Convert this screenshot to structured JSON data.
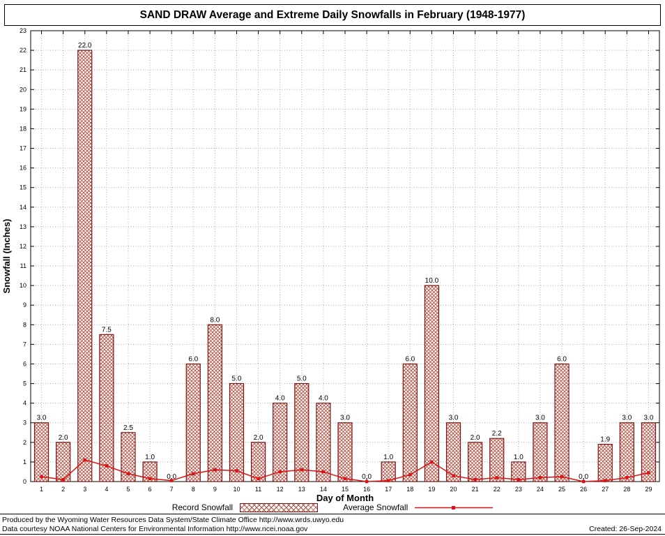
{
  "title": "SAND DRAW Average and Extreme Daily Snowfalls in February (1948-1977)",
  "legend": {
    "record_label": "Record Snowfall",
    "average_label": "Average Snowfall"
  },
  "footer": {
    "line1": "Produced by the Wyoming Water Resources Data System/State Climate Office http://www.wrds.uwyo.edu",
    "line2": "Data courtesy NOAA National Centers for Environmental Information http://www.ncei.noaa.gov",
    "created": "Created: 26-Sep-2024"
  },
  "chart_data": {
    "type": "bar",
    "title": "SAND DRAW Average and Extreme Daily Snowfalls in February (1948-1977)",
    "xlabel": "Day of Month",
    "ylabel": "Snowfall (Inches)",
    "ylim": [
      0,
      23
    ],
    "ytick_step": 1,
    "grid": true,
    "legend_position": "bottom",
    "categories": [
      1,
      2,
      3,
      4,
      5,
      6,
      7,
      8,
      9,
      10,
      11,
      12,
      13,
      14,
      15,
      16,
      17,
      18,
      19,
      20,
      21,
      22,
      23,
      24,
      25,
      26,
      27,
      28,
      29
    ],
    "series": [
      {
        "name": "Record Snowfall",
        "type": "bar",
        "values": [
          3.0,
          2.0,
          22.0,
          7.5,
          2.5,
          1.0,
          0.0,
          6.0,
          8.0,
          5.0,
          2.0,
          4.0,
          5.0,
          4.0,
          3.0,
          0.0,
          1.0,
          6.0,
          10.0,
          3.0,
          2.0,
          2.2,
          1.0,
          3.0,
          6.0,
          0.0,
          1.9,
          3.0,
          3.0
        ]
      },
      {
        "name": "Average Snowfall",
        "type": "line",
        "values": [
          0.25,
          0.1,
          1.1,
          0.8,
          0.4,
          0.15,
          0.05,
          0.4,
          0.6,
          0.55,
          0.15,
          0.5,
          0.6,
          0.5,
          0.15,
          0.0,
          0.05,
          0.35,
          1.0,
          0.3,
          0.1,
          0.2,
          0.1,
          0.2,
          0.25,
          0.0,
          0.05,
          0.2,
          0.45
        ]
      }
    ],
    "colors": {
      "bar_edge": "#801515",
      "bar_hatch": "#b2493a",
      "line": "#dd1111",
      "grid": "#a8a8a8",
      "axis": "#000000"
    }
  }
}
